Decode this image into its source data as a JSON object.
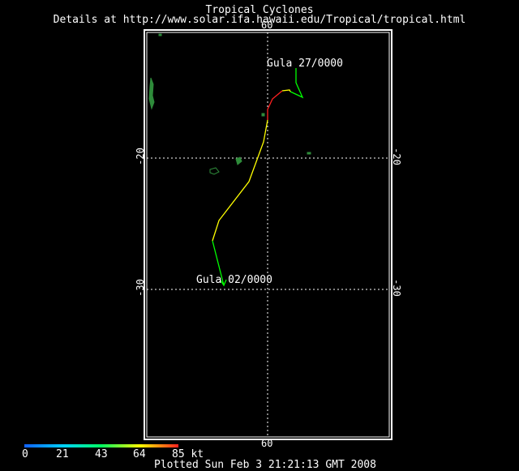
{
  "header": {
    "title": "Tropical Cyclones",
    "subtitle": "Details at http://www.solar.ifa.hawaii.edu/Tropical/tropical.html"
  },
  "map": {
    "lat_ticks": [
      "-20",
      "-30"
    ],
    "lon_ticks": [
      "60"
    ],
    "colors": {
      "background": "#000000",
      "land": "#2e8b3a",
      "grid": "#ffffff",
      "frame": "#ffffff"
    },
    "track": {
      "storm": "Gula",
      "start_label": "Gula  27/0000",
      "end_label": "Gula  02/0000",
      "segment_colors": [
        "#00ff00",
        "#ffff00",
        "#ff2020",
        "#ffff00",
        "#00ff00"
      ]
    }
  },
  "legend": {
    "labels": [
      "0",
      "21",
      "43",
      "64",
      "85 kt"
    ],
    "gradient": [
      "#1060ff",
      "#00d0ff",
      "#00ff60",
      "#ffff00",
      "#ff2020"
    ]
  },
  "footer": {
    "plotted": "Plotted Sun Feb 3 21:21:13 GMT 2008"
  }
}
